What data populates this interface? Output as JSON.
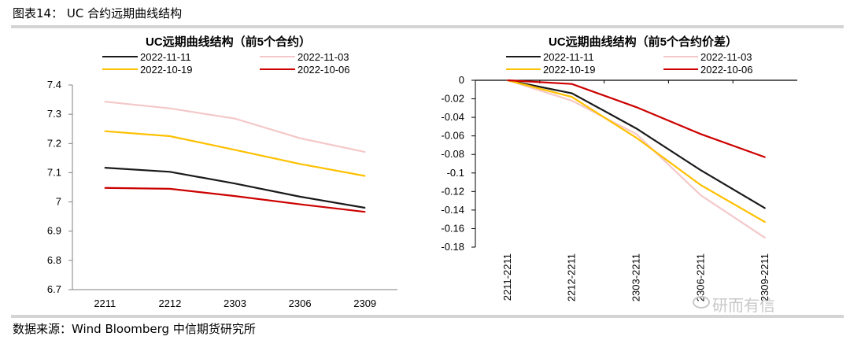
{
  "header": {
    "title": "图表14： UC 合约远期曲线结构",
    "source": "数据来源：Wind  Bloomberg  中信期货研究所"
  },
  "watermark": "研而有信",
  "chart_data": [
    {
      "type": "line",
      "title": "UC远期曲线结构（前5个合约）",
      "categories": [
        "2211",
        "2212",
        "2303",
        "2306",
        "2309"
      ],
      "ylim": [
        6.7,
        7.4
      ],
      "yticks": [
        "7.4",
        "7.3",
        "7.2",
        "7.1",
        "7",
        "6.9",
        "6.8",
        "6.7"
      ],
      "ytick_values": [
        7.4,
        7.3,
        7.2,
        7.1,
        7.0,
        6.9,
        6.8,
        6.7
      ],
      "series": [
        {
          "name": "2022-11-11",
          "color": "#1a1a1a",
          "values": [
            7.117,
            7.103,
            7.063,
            7.018,
            6.98
          ]
        },
        {
          "name": "2022-11-03",
          "color": "#f4c8c8",
          "values": [
            7.343,
            7.32,
            7.285,
            7.218,
            7.171
          ]
        },
        {
          "name": "2022-10-19",
          "color": "#ffc000",
          "values": [
            7.242,
            7.225,
            7.178,
            7.13,
            7.089
          ]
        },
        {
          "name": "2022-10-06",
          "color": "#cc0000",
          "values": [
            7.048,
            7.045,
            7.02,
            6.992,
            6.966
          ]
        }
      ]
    },
    {
      "type": "line",
      "title": "UC远期曲线结构（前5个合约价差）",
      "categories": [
        "2211-2211",
        "2212-2211",
        "2303-2211",
        "2306-2211",
        "2309-2211"
      ],
      "ylim": [
        -0.18,
        0
      ],
      "yticks": [
        "0",
        "-0.02",
        "-0.04",
        "-0.06",
        "-0.08",
        "-0.1",
        "-0.12",
        "-0.14",
        "-0.16",
        "-0.18"
      ],
      "ytick_values": [
        0,
        -0.02,
        -0.04,
        -0.06,
        -0.08,
        -0.1,
        -0.12,
        -0.14,
        -0.16,
        -0.18
      ],
      "series": [
        {
          "name": "2022-11-11",
          "color": "#1a1a1a",
          "values": [
            0,
            -0.014,
            -0.052,
            -0.097,
            -0.138
          ]
        },
        {
          "name": "2022-11-03",
          "color": "#f4c8c8",
          "values": [
            0,
            -0.022,
            -0.058,
            -0.124,
            -0.17
          ]
        },
        {
          "name": "2022-10-19",
          "color": "#ffc000",
          "values": [
            0,
            -0.018,
            -0.062,
            -0.113,
            -0.153
          ]
        },
        {
          "name": "2022-10-06",
          "color": "#cc0000",
          "values": [
            0,
            -0.004,
            -0.029,
            -0.058,
            -0.083
          ]
        }
      ]
    }
  ]
}
